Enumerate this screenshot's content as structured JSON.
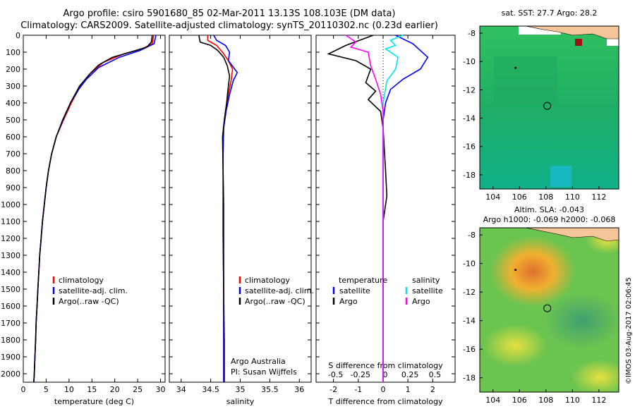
{
  "header": {
    "line1": "Argo profile: csiro 5901680_85 02-Mar-2011 13.13S 108.103E (DM data)",
    "line2": "Climatology: CARS2009. Satellite-adjusted climatology: synTS_20110302.nc (0.23d earlier)"
  },
  "colors": {
    "clim": "#ff0000",
    "sat": "#0000ff",
    "argo": "#000000",
    "sal_sat": "#00e5ee",
    "sal_argo": "#ff00ff"
  },
  "depth_ticks": [
    0,
    100,
    200,
    300,
    400,
    500,
    600,
    700,
    800,
    900,
    1000,
    1100,
    1200,
    1300,
    1400,
    1500,
    1600,
    1700,
    1800,
    1900,
    2000
  ],
  "chart_data": [
    {
      "type": "line",
      "xlabel": "temperature (deg C)",
      "xlim": [
        0,
        31
      ],
      "xticks": [
        0,
        5,
        10,
        15,
        20,
        25,
        30
      ],
      "ylim": [
        0,
        2050
      ],
      "legend": [
        "climatology",
        "satellite-adj. clim.",
        "Argo(..raw -QC)"
      ],
      "legend_position": "bottom-right",
      "series": [
        {
          "name": "climatology",
          "color": "#ff0000",
          "points": [
            [
              28.5,
              0
            ],
            [
              28.2,
              50
            ],
            [
              26,
              80
            ],
            [
              22,
              110
            ],
            [
              17.5,
              160
            ],
            [
              14.5,
              230
            ],
            [
              12.5,
              300
            ],
            [
              10.5,
              400
            ],
            [
              8.8,
              500
            ],
            [
              7.2,
              600
            ],
            [
              6.2,
              700
            ],
            [
              5.5,
              800
            ],
            [
              5.0,
              900
            ],
            [
              4.6,
              1000
            ],
            [
              4.2,
              1100
            ],
            [
              3.9,
              1200
            ],
            [
              3.6,
              1300
            ],
            [
              3.4,
              1400
            ],
            [
              3.2,
              1500
            ],
            [
              3.0,
              1600
            ],
            [
              2.8,
              1700
            ],
            [
              2.7,
              1800
            ],
            [
              2.55,
              1900
            ],
            [
              2.4,
              2000
            ],
            [
              2.3,
              2050
            ]
          ]
        },
        {
          "name": "satellite-adj. clim.",
          "color": "#0000ff",
          "points": [
            [
              29,
              0
            ],
            [
              28.6,
              50
            ],
            [
              25.5,
              90
            ],
            [
              21,
              130
            ],
            [
              16.5,
              190
            ],
            [
              13.8,
              260
            ],
            [
              12.1,
              320
            ],
            [
              10.3,
              400
            ],
            [
              8.7,
              500
            ],
            [
              7.2,
              600
            ],
            [
              6.2,
              700
            ],
            [
              5.5,
              800
            ],
            [
              5.0,
              900
            ],
            [
              4.6,
              1000
            ],
            [
              4.2,
              1100
            ],
            [
              3.9,
              1200
            ],
            [
              3.6,
              1300
            ],
            [
              3.4,
              1400
            ],
            [
              3.2,
              1500
            ],
            [
              3.0,
              1600
            ],
            [
              2.8,
              1700
            ],
            [
              2.7,
              1800
            ],
            [
              2.55,
              1900
            ],
            [
              2.4,
              2000
            ],
            [
              2.3,
              2050
            ]
          ]
        },
        {
          "name": "Argo(..raw -QC)",
          "color": "#000000",
          "points": [
            [
              28.2,
              0
            ],
            [
              28,
              40
            ],
            [
              27,
              70
            ],
            [
              24,
              95
            ],
            [
              19.5,
              130
            ],
            [
              16.5,
              175
            ],
            [
              14.5,
              230
            ],
            [
              12.3,
              300
            ],
            [
              10.3,
              400
            ],
            [
              8.6,
              500
            ],
            [
              7.2,
              600
            ],
            [
              6.2,
              700
            ],
            [
              5.5,
              800
            ],
            [
              5.0,
              900
            ],
            [
              4.6,
              1000
            ],
            [
              4.2,
              1100
            ],
            [
              3.9,
              1200
            ],
            [
              3.6,
              1300
            ],
            [
              3.4,
              1400
            ],
            [
              3.2,
              1500
            ],
            [
              3.0,
              1600
            ],
            [
              2.8,
              1700
            ],
            [
              2.7,
              1800
            ],
            [
              2.55,
              1900
            ],
            [
              2.4,
              2000
            ],
            [
              2.3,
              2050
            ]
          ]
        }
      ]
    },
    {
      "type": "line",
      "xlabel": "salinity",
      "xlim": [
        33.8,
        36.2
      ],
      "xticks": [
        34,
        34.5,
        35,
        35.5,
        36
      ],
      "ylim": [
        0,
        2050
      ],
      "legend": [
        "climatology",
        "satellite-adj. clim.",
        "Argo(..raw -QC)"
      ],
      "legend_position": "bottom-right",
      "annotations": [
        "Argo Australia",
        "PI: Susan Wijffels"
      ],
      "series": [
        {
          "name": "climatology",
          "color": "#ff0000",
          "points": [
            [
              34.45,
              0
            ],
            [
              34.45,
              30
            ],
            [
              34.6,
              60
            ],
            [
              34.7,
              100
            ],
            [
              34.8,
              150
            ],
            [
              34.87,
              200
            ],
            [
              34.85,
              260
            ],
            [
              34.8,
              350
            ],
            [
              34.75,
              450
            ],
            [
              34.72,
              550
            ],
            [
              34.71,
              700
            ],
            [
              34.71,
              900
            ],
            [
              34.71,
              1200
            ],
            [
              34.72,
              1500
            ],
            [
              34.72,
              1800
            ],
            [
              34.72,
              2050
            ]
          ]
        },
        {
          "name": "satellite-adj. clim.",
          "color": "#0000ff",
          "points": [
            [
              34.55,
              0
            ],
            [
              34.6,
              30
            ],
            [
              34.75,
              60
            ],
            [
              34.82,
              100
            ],
            [
              34.8,
              150
            ],
            [
              34.95,
              220
            ],
            [
              34.88,
              270
            ],
            [
              34.82,
              350
            ],
            [
              34.76,
              450
            ],
            [
              34.72,
              550
            ],
            [
              34.71,
              700
            ],
            [
              34.71,
              900
            ],
            [
              34.71,
              1200
            ],
            [
              34.72,
              1500
            ],
            [
              34.72,
              1800
            ],
            [
              34.72,
              2050
            ]
          ]
        },
        {
          "name": "Argo(..raw -QC)",
          "color": "#000000",
          "points": [
            [
              34.3,
              0
            ],
            [
              34.32,
              40
            ],
            [
              34.5,
              60
            ],
            [
              34.62,
              90
            ],
            [
              34.72,
              130
            ],
            [
              34.78,
              180
            ],
            [
              34.82,
              240
            ],
            [
              34.8,
              300
            ],
            [
              34.77,
              400
            ],
            [
              34.73,
              500
            ],
            [
              34.7,
              600
            ],
            [
              34.71,
              800
            ],
            [
              34.72,
              1000
            ],
            [
              34.72,
              1200
            ],
            [
              34.72,
              1500
            ],
            [
              34.73,
              1800
            ],
            [
              34.73,
              2050
            ]
          ]
        }
      ]
    },
    {
      "type": "line",
      "xlabel": "T difference from climatology",
      "secondary_xlabel": "S difference from climatology",
      "xlim": [
        -2.7,
        2.9
      ],
      "xticks": [
        -2,
        -1,
        0,
        1,
        2
      ],
      "secondary_xticks": [
        -0.5,
        -0.25,
        0,
        0.25,
        0.5
      ],
      "ylim": [
        0,
        2050
      ],
      "legend_groups": [
        {
          "title": "temperature",
          "items": [
            "satellite",
            "Argo"
          ]
        },
        {
          "title": "salinity",
          "items": [
            "satellite",
            "Argo"
          ]
        }
      ],
      "legend_position": "bottom",
      "series": [
        {
          "name": "temperature satellite",
          "color": "#0000ff",
          "points": [
            [
              0.5,
              0
            ],
            [
              1.2,
              50
            ],
            [
              1.8,
              130
            ],
            [
              1.5,
              200
            ],
            [
              0.8,
              260
            ],
            [
              0.3,
              320
            ],
            [
              0.1,
              400
            ],
            [
              0,
              500
            ],
            [
              0,
              700
            ],
            [
              0,
              1000
            ],
            [
              0,
              1500
            ],
            [
              0,
              2050
            ]
          ]
        },
        {
          "name": "temperature Argo",
          "color": "#000000",
          "points": [
            [
              -0.4,
              0
            ],
            [
              -1.5,
              60
            ],
            [
              -2.2,
              110
            ],
            [
              -1.1,
              150
            ],
            [
              -0.5,
              200
            ],
            [
              -0.7,
              280
            ],
            [
              -0.3,
              330
            ],
            [
              -0.6,
              380
            ],
            [
              -0.1,
              450
            ],
            [
              0,
              550
            ],
            [
              0.1,
              800
            ],
            [
              0.15,
              950
            ],
            [
              0,
              1100
            ],
            [
              0,
              1500
            ],
            [
              0,
              2050
            ]
          ]
        },
        {
          "name": "salinity satellite",
          "color": "#00e5ee",
          "points": [
            [
              0.8,
              0
            ],
            [
              0.3,
              30
            ],
            [
              0.5,
              60
            ],
            [
              0.1,
              80
            ],
            [
              0.6,
              130
            ],
            [
              0.5,
              200
            ],
            [
              0.15,
              270
            ],
            [
              0,
              400
            ],
            [
              0,
              600
            ],
            [
              0,
              1000
            ],
            [
              0,
              1500
            ],
            [
              0,
              2050
            ]
          ]
        },
        {
          "name": "salinity Argo",
          "color": "#ff00ff",
          "points": [
            [
              -1.5,
              0
            ],
            [
              -1.1,
              40
            ],
            [
              -1.3,
              70
            ],
            [
              -0.6,
              100
            ],
            [
              -0.5,
              180
            ],
            [
              -0.3,
              260
            ],
            [
              -0.1,
              350
            ],
            [
              0,
              450
            ],
            [
              0,
              700
            ],
            [
              0,
              1000
            ],
            [
              0,
              1500
            ],
            [
              0,
              2050
            ]
          ]
        }
      ]
    },
    {
      "type": "heatmap",
      "title": "sat. SST: 27.7 Argo: 28.2",
      "xlim": [
        103,
        113.5
      ],
      "ylim": [
        -19,
        -7.5
      ],
      "xticks": [
        104,
        106,
        108,
        110,
        112
      ],
      "yticks": [
        -8,
        -10,
        -12,
        -14,
        -16,
        -18
      ],
      "markers": [
        {
          "lon": 108.1,
          "lat": -13.13,
          "kind": "circle"
        },
        {
          "lon": 105.7,
          "lat": -10.45,
          "kind": "dot"
        }
      ]
    },
    {
      "type": "heatmap",
      "title": "Altim. SLA: -0.043",
      "subtitle": "Argo h1000: -0.069 h2000: -0.068",
      "xlim": [
        103,
        113.5
      ],
      "ylim": [
        -19,
        -7.5
      ],
      "xticks": [
        104,
        106,
        108,
        110,
        112
      ],
      "yticks": [
        -8,
        -10,
        -12,
        -14,
        -16,
        -18
      ],
      "markers": [
        {
          "lon": 108.1,
          "lat": -13.13,
          "kind": "circle"
        },
        {
          "lon": 105.7,
          "lat": -10.45,
          "kind": "dot"
        }
      ]
    }
  ],
  "footer": {
    "credit": "©IMOS 03-Aug-2017 02:06:45"
  }
}
